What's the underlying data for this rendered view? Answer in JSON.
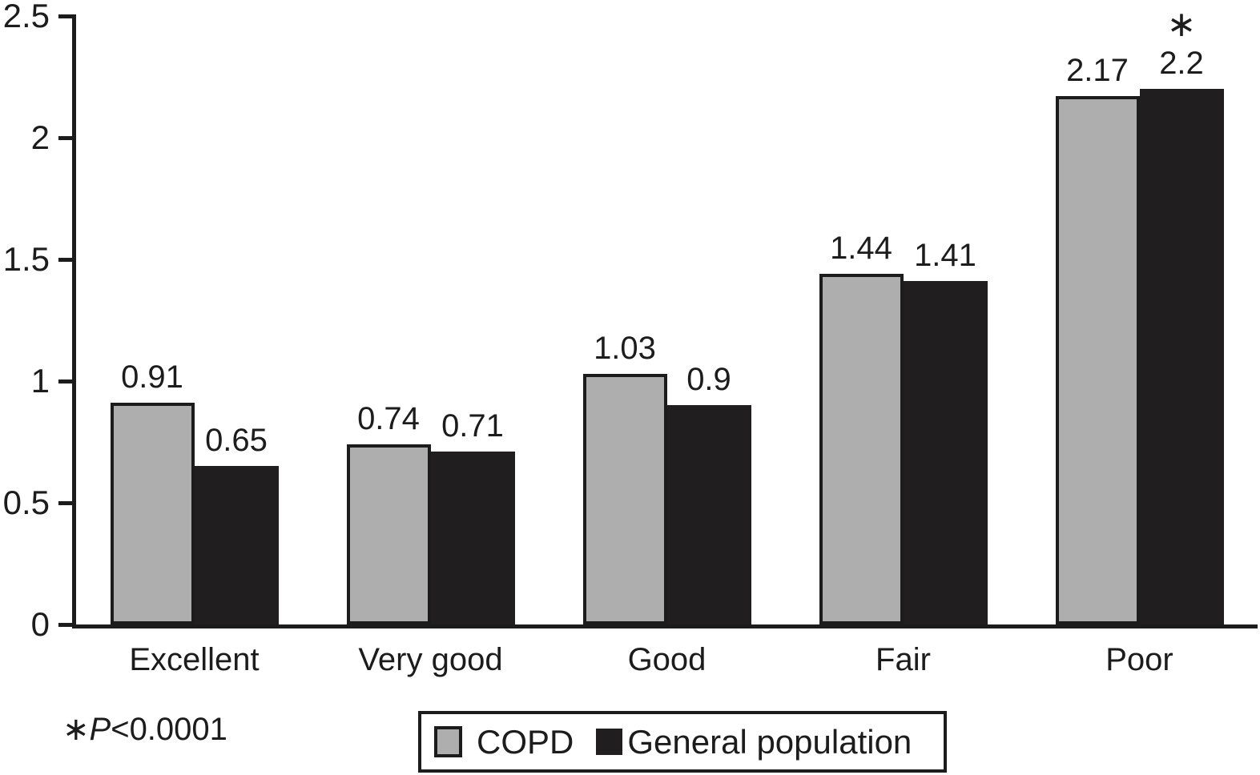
{
  "chart_data": {
    "type": "bar",
    "title": "",
    "categories": [
      "Excellent",
      "Very good",
      "Good",
      "Fair",
      "Poor"
    ],
    "series": [
      {
        "name": "COPD",
        "color": "#aeaeae",
        "outlined": true,
        "values": [
          0.91,
          0.74,
          1.03,
          1.44,
          2.17
        ],
        "labels": [
          "0.91",
          "0.74",
          "1.03",
          "1.44",
          "2.17"
        ]
      },
      {
        "name": "General population",
        "color": "#211e1f",
        "outlined": false,
        "values": [
          0.65,
          0.71,
          0.9,
          1.41,
          2.2
        ],
        "labels": [
          "0.65",
          "0.71",
          "0.9",
          "1.41",
          "2.2"
        ]
      }
    ],
    "annotations": [
      {
        "series_index": 1,
        "category_index": 4,
        "symbol": "∗"
      }
    ],
    "ylim": [
      0,
      2.5
    ],
    "yticks": [
      {
        "value": 0,
        "label": "0"
      },
      {
        "value": 0.5,
        "label": "0.5"
      },
      {
        "value": 1,
        "label": "1"
      },
      {
        "value": 1.5,
        "label": "1.5"
      },
      {
        "value": 2,
        "label": "2"
      },
      {
        "value": 2.5,
        "label": "2.5"
      }
    ],
    "axis_color": "#1c1c1c",
    "grid": false,
    "legend_position": "bottom",
    "footnote": {
      "symbol": "∗",
      "p": "P",
      "rest": "<0.0001"
    }
  }
}
